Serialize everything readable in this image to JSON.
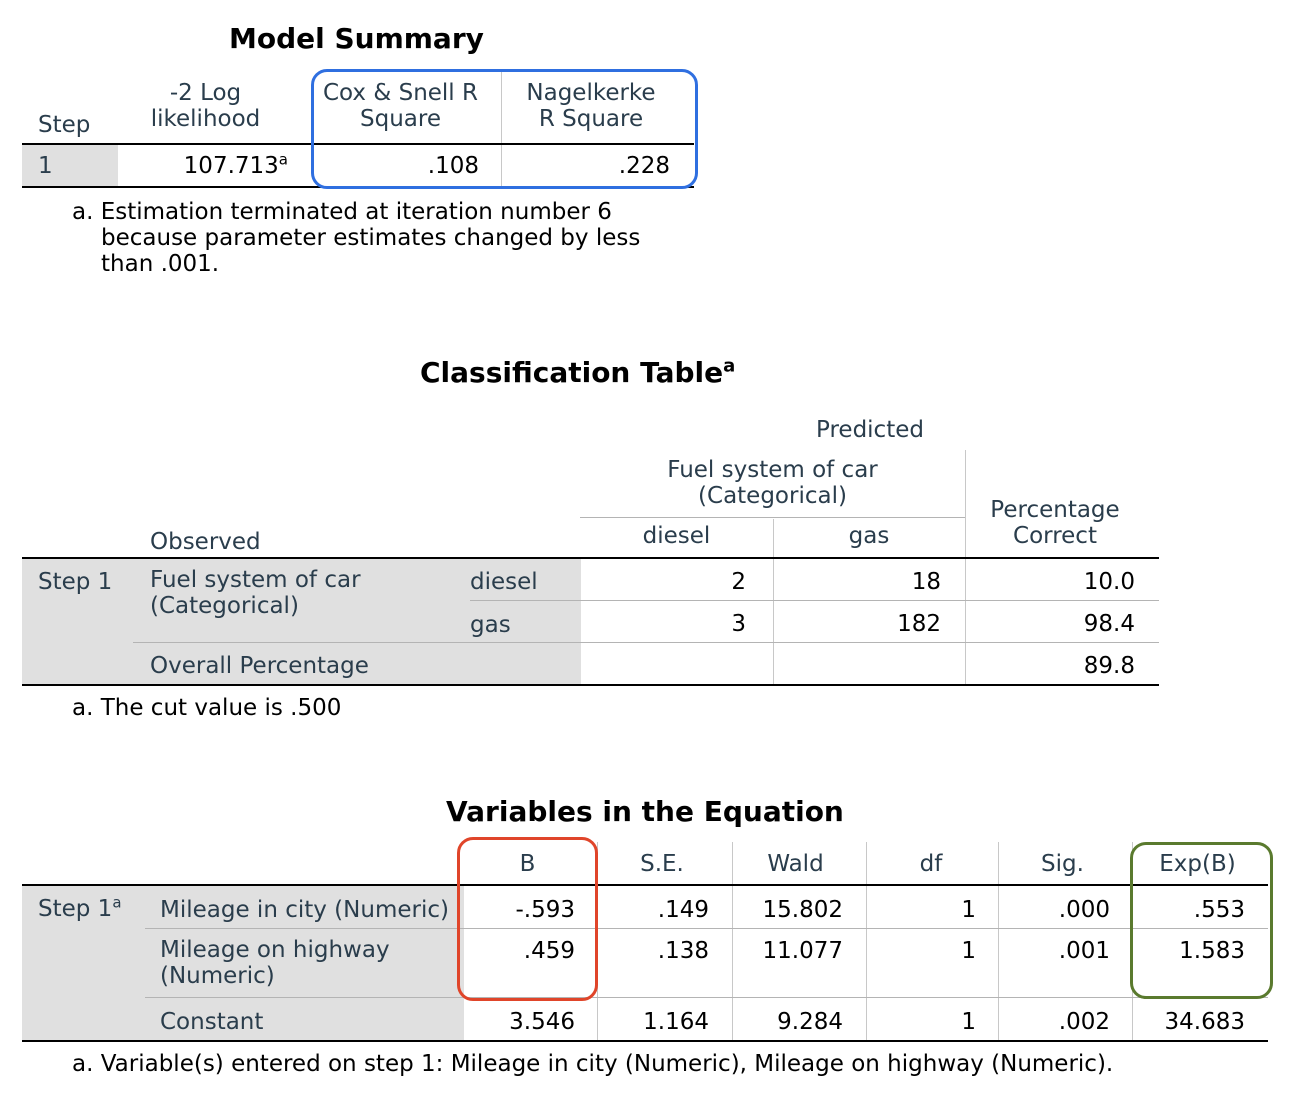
{
  "model_summary": {
    "title": "Model Summary",
    "headers": {
      "step": "Step",
      "neg2ll_l1": "-2 Log",
      "neg2ll_l2": "likelihood",
      "cox_l1": "Cox & Snell R",
      "cox_l2": "Square",
      "nag_l1": "Nagelkerke",
      "nag_l2": "R Square"
    },
    "row": {
      "step": "1",
      "neg2ll": "107.713",
      "neg2ll_sup": "a",
      "cox": ".108",
      "nag": ".228"
    },
    "footnote_l1": "a. Estimation terminated at iteration number 6",
    "footnote_l2": "because parameter estimates changed by less",
    "footnote_l3": "than .001."
  },
  "classification": {
    "title": "Classification Table",
    "title_sup": "a",
    "predicted": "Predicted",
    "fuel_header_l1": "Fuel system of car",
    "fuel_header_l2": "(Categorical)",
    "pct_l1": "Percentage",
    "pct_l2": "Correct",
    "col_diesel": "diesel",
    "col_gas": "gas",
    "observed": "Observed",
    "step": "Step 1",
    "fuel_l1": "Fuel system of car",
    "fuel_l2": "(Categorical)",
    "rows": [
      {
        "label": "diesel",
        "diesel": "2",
        "gas": "18",
        "pct": "10.0"
      },
      {
        "label": "gas",
        "diesel": "3",
        "gas": "182",
        "pct": "98.4"
      }
    ],
    "overall_label": "Overall Percentage",
    "overall_pct": "89.8",
    "footnote": "a. The cut value is .500"
  },
  "variables": {
    "title": "Variables in the Equation",
    "headers": {
      "b": "B",
      "se": "S.E.",
      "wald": "Wald",
      "df": "df",
      "sig": "Sig.",
      "expb": "Exp(B)"
    },
    "step": "Step 1",
    "step_sup": "a",
    "rows": [
      {
        "label_l1": "Mileage in city (Numeric)",
        "label_l2": "",
        "b": "-.593",
        "se": ".149",
        "wald": "15.802",
        "df": "1",
        "sig": ".000",
        "expb": ".553"
      },
      {
        "label_l1": "Mileage on highway",
        "label_l2": "(Numeric)",
        "b": ".459",
        "se": ".138",
        "wald": "11.077",
        "df": "1",
        "sig": ".001",
        "expb": "1.583"
      },
      {
        "label_l1": "Constant",
        "label_l2": "",
        "b": "3.546",
        "se": "1.164",
        "wald": "9.284",
        "df": "1",
        "sig": ".002",
        "expb": "34.683"
      }
    ],
    "footnote": "a. Variable(s) entered on step 1: Mileage in city (Numeric), Mileage on highway (Numeric)."
  },
  "highlight_colors": {
    "blue": "#2f6fe0",
    "red": "#e0452a",
    "green": "#5a7a2e"
  }
}
